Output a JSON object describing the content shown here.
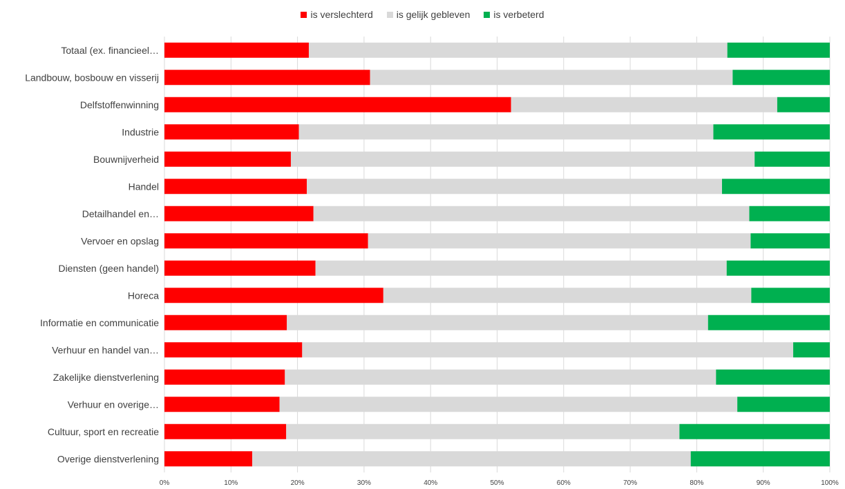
{
  "chart_data": {
    "type": "bar",
    "orientation": "horizontal",
    "stacked": "percent",
    "title": "",
    "categories": [
      "Totaal (ex. financieel…",
      "Landbouw, bosbouw en visserij",
      "Delfstoffenwinning",
      "Industrie",
      "Bouwnijverheid",
      "Handel",
      "Detailhandel en…",
      "Vervoer en opslag",
      "Diensten (geen handel)",
      "Horeca",
      "Informatie en communicatie",
      "Verhuur en handel van…",
      "Zakelijke dienstverlening",
      "Verhuur en overige…",
      "Cultuur, sport en recreatie",
      "Overige dienstverlening"
    ],
    "series": [
      {
        "name": "is verslechterd",
        "color": "#ff0000",
        "values": [
          21.7,
          30.9,
          52.1,
          20.2,
          19.0,
          21.4,
          22.4,
          30.6,
          22.7,
          32.9,
          18.4,
          20.7,
          18.1,
          17.3,
          18.3,
          13.2
        ]
      },
      {
        "name": "is gelijk gebleven",
        "color": "#d9d9d9",
        "values": [
          62.9,
          54.5,
          40.0,
          62.3,
          69.7,
          62.4,
          65.5,
          57.5,
          61.8,
          55.3,
          63.3,
          73.8,
          64.8,
          68.8,
          59.1,
          65.9
        ]
      },
      {
        "name": "is verbeterd",
        "color": "#00b050",
        "values": [
          15.4,
          14.6,
          7.9,
          17.5,
          11.3,
          16.2,
          12.1,
          11.9,
          15.5,
          11.8,
          18.3,
          5.5,
          17.1,
          13.9,
          22.6,
          20.9
        ]
      }
    ],
    "xlim": [
      0,
      100
    ],
    "x_ticks": [
      "0%",
      "10%",
      "20%",
      "30%",
      "40%",
      "50%",
      "60%",
      "70%",
      "80%",
      "90%",
      "100%"
    ],
    "grid": true,
    "legend_position": "top"
  }
}
